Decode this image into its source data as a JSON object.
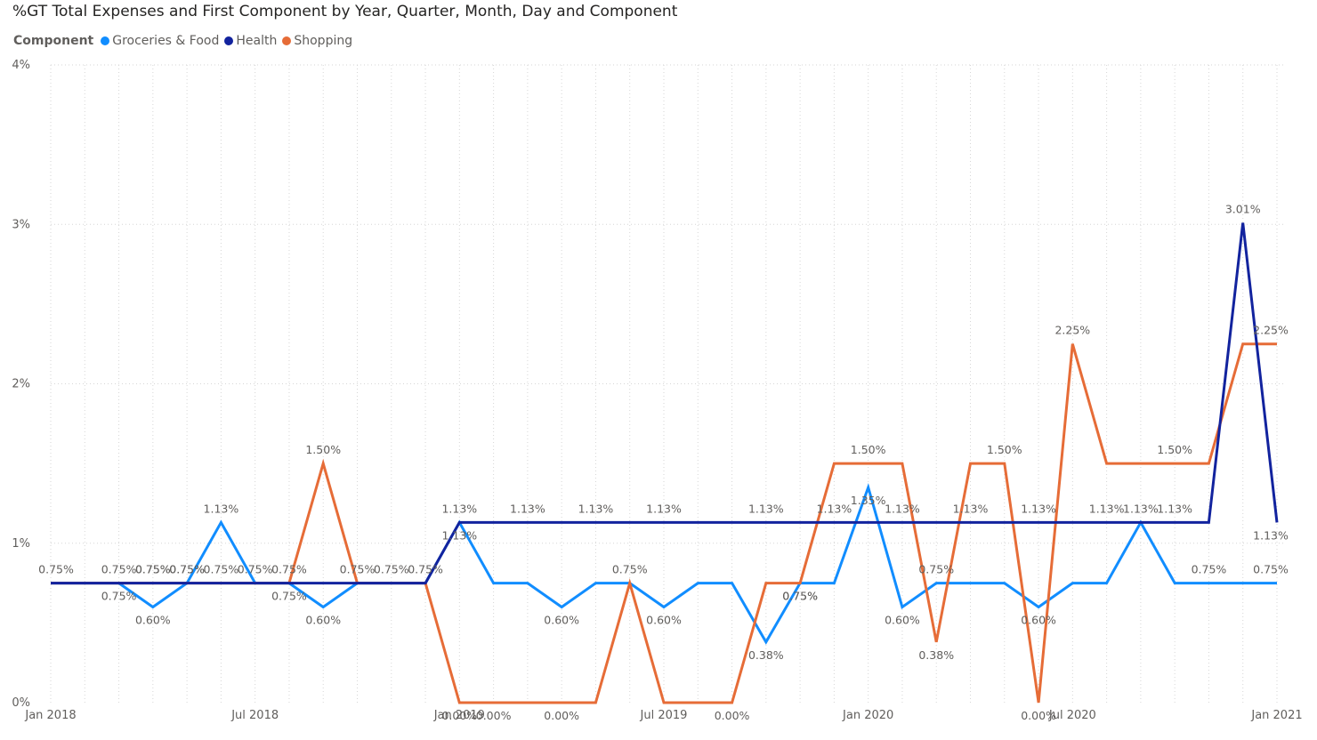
{
  "chart_data": {
    "type": "line",
    "title": "%GT Total Expenses and First Component by Year, Quarter, Month, Day and Component",
    "legend_title": "Component",
    "legend_position": "top-left",
    "grid": true,
    "y_tick_labels": [
      "0%",
      "1%",
      "2%",
      "3%",
      "4%"
    ],
    "ylim": [
      0,
      4
    ],
    "x_tick_labels": [
      "Jan 2018",
      "Jul 2018",
      "Jan 2019",
      "Jul 2019",
      "Jan 2020",
      "Jul 2020",
      "Jan 2021"
    ],
    "x": [
      "2018-01",
      "2018-02",
      "2018-03",
      "2018-04",
      "2018-05",
      "2018-06",
      "2018-07",
      "2018-08",
      "2018-09",
      "2018-10",
      "2018-11",
      "2018-12",
      "2019-01",
      "2019-02",
      "2019-03",
      "2019-04",
      "2019-05",
      "2019-06",
      "2019-07",
      "2019-08",
      "2019-09",
      "2019-10",
      "2019-11",
      "2019-12",
      "2020-01",
      "2020-02",
      "2020-03",
      "2020-04",
      "2020-05",
      "2020-06",
      "2020-07",
      "2020-08",
      "2020-09",
      "2020-10",
      "2020-11",
      "2020-12",
      "2021-01"
    ],
    "series": [
      {
        "name": "Groceries & Food",
        "color": "#118DFF",
        "values": [
          0.75,
          0.75,
          0.75,
          0.6,
          0.75,
          1.13,
          0.75,
          0.75,
          0.6,
          0.75,
          0.75,
          0.75,
          1.13,
          0.75,
          0.75,
          0.6,
          0.75,
          0.75,
          0.6,
          0.75,
          0.75,
          0.38,
          0.75,
          0.75,
          1.35,
          0.6,
          0.75,
          0.75,
          0.75,
          0.6,
          0.75,
          0.75,
          1.13,
          0.75,
          0.75,
          0.75,
          0.75
        ],
        "labels": [
          "0.75%",
          "",
          "0.75%",
          "0.60%",
          "0.75%",
          "1.13%",
          "",
          "0.75%",
          "0.60%",
          "",
          "",
          "",
          "1.13%",
          "",
          "",
          "0.60%",
          "",
          "",
          "0.60%",
          "",
          "",
          "0.38%",
          "0.75%",
          "",
          "1.35%",
          "0.60%",
          "0.75%",
          "",
          "",
          "0.60%",
          "",
          "",
          "",
          "",
          "0.75%",
          "",
          "0.75%"
        ],
        "label_side": [
          "above",
          "",
          "below",
          "below",
          "above",
          "above",
          "",
          "below",
          "below",
          "",
          "",
          "",
          "below",
          "",
          "",
          "below",
          "",
          "",
          "below",
          "",
          "",
          "below",
          "below",
          "",
          "below",
          "below",
          "above",
          "",
          "",
          "below",
          "",
          "",
          "",
          "",
          "above",
          "",
          "above"
        ]
      },
      {
        "name": "Health",
        "color": "#12239E",
        "values": [
          0.75,
          0.75,
          0.75,
          0.75,
          0.75,
          0.75,
          0.75,
          0.75,
          0.75,
          0.75,
          0.75,
          0.75,
          1.13,
          1.13,
          1.13,
          1.13,
          1.13,
          1.13,
          1.13,
          1.13,
          1.13,
          1.13,
          1.13,
          1.13,
          1.13,
          1.13,
          1.13,
          1.13,
          1.13,
          1.13,
          1.13,
          1.13,
          1.13,
          1.13,
          1.13,
          3.01,
          1.13
        ],
        "labels": [
          "",
          "",
          "0.75%",
          "0.75%",
          "0.75%",
          "0.75%",
          "0.75%",
          "0.75%",
          "",
          "",
          "",
          "",
          "1.13%",
          "",
          "1.13%",
          "",
          "1.13%",
          "",
          "1.13%",
          "",
          "",
          "1.13%",
          "",
          "1.13%",
          "",
          "1.13%",
          "",
          "1.13%",
          "",
          "1.13%",
          "",
          "1.13%",
          "1.13%",
          "1.13%",
          "",
          "3.01%",
          "1.13%"
        ],
        "label_side": [
          "",
          "",
          "above",
          "above",
          "above",
          "above",
          "above",
          "above",
          "",
          "",
          "",
          "",
          "above",
          "",
          "above",
          "",
          "above",
          "",
          "above",
          "",
          "",
          "above",
          "",
          "above",
          "",
          "above",
          "",
          "above",
          "",
          "above",
          "",
          "above",
          "above",
          "above",
          "",
          "above",
          "below"
        ]
      },
      {
        "name": "Shopping",
        "color": "#E66C37",
        "values": [
          0.75,
          0.75,
          0.75,
          0.75,
          0.75,
          0.75,
          0.75,
          0.75,
          1.5,
          0.75,
          0.75,
          0.75,
          0.0,
          0.0,
          0.0,
          0.0,
          0.0,
          0.75,
          0.0,
          0.0,
          0.0,
          0.75,
          0.75,
          1.5,
          1.5,
          1.5,
          0.38,
          1.5,
          1.5,
          0.0,
          2.25,
          1.5,
          1.5,
          1.5,
          1.5,
          2.25,
          2.25
        ],
        "labels": [
          "",
          "",
          "",
          "0.75%",
          "",
          "",
          "",
          "",
          "1.50%",
          "0.75%",
          "0.75%",
          "0.75%",
          "0.00%",
          "0.00%",
          "",
          "0.00%",
          "",
          "0.75%",
          "",
          "",
          "0.00%",
          "",
          "0.75%",
          "",
          "1.50%",
          "",
          "0.38%",
          "",
          "1.50%",
          "0.00%",
          "2.25%",
          "",
          "",
          "1.50%",
          "",
          "",
          "2.25%"
        ],
        "label_side": [
          "",
          "",
          "",
          "above",
          "",
          "",
          "",
          "",
          "above",
          "above",
          "above",
          "above",
          "below",
          "below",
          "",
          "below",
          "",
          "above",
          "",
          "",
          "below",
          "",
          "below",
          "",
          "above",
          "",
          "below",
          "",
          "above",
          "below",
          "above",
          "",
          "",
          "above",
          "",
          "",
          "above"
        ]
      }
    ]
  }
}
